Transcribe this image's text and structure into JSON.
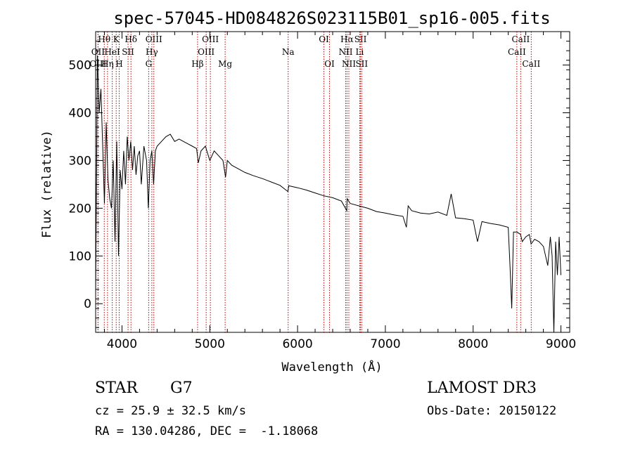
{
  "chart_data": {
    "type": "line",
    "title": "spec-57045-HD084826S023115B01_sp16-005.fits",
    "xlabel": "Wavelength (Å)",
    "ylabel": "Flux (relative)",
    "xlim": [
      3700,
      9100
    ],
    "ylim": [
      -60,
      570
    ],
    "x_ticks": [
      4000,
      5000,
      6000,
      7000,
      8000,
      9000
    ],
    "y_ticks": [
      0,
      100,
      200,
      300,
      400,
      500
    ],
    "grid": false,
    "series": [
      {
        "x": [
          3700,
          3720,
          3740,
          3760,
          3780,
          3800,
          3820,
          3840,
          3860,
          3880,
          3900,
          3920,
          3940,
          3960,
          3980,
          4000,
          4020,
          4040,
          4060,
          4080,
          4100,
          4120,
          4140,
          4160,
          4180,
          4200,
          4220,
          4250,
          4280,
          4300,
          4320,
          4340,
          4360,
          4380,
          4400,
          4450,
          4500,
          4550,
          4600,
          4650,
          4700,
          4750,
          4800,
          4850,
          4870,
          4900,
          4950,
          5000,
          5050,
          5100,
          5150,
          5180,
          5200,
          5250,
          5300,
          5400,
          5500,
          5600,
          5700,
          5800,
          5890,
          5900,
          6000,
          6100,
          6200,
          6300,
          6400,
          6500,
          6560,
          6565,
          6600,
          6700,
          6800,
          6900,
          7000,
          7100,
          7200,
          7240,
          7260,
          7300,
          7400,
          7500,
          7600,
          7700,
          7750,
          7800,
          7900,
          8000,
          8050,
          8100,
          8200,
          8300,
          8400,
          8420,
          8440,
          8460,
          8500,
          8540,
          8560,
          8600,
          8640,
          8660,
          8700,
          8750,
          8800,
          8850,
          8880,
          8900,
          8920,
          8940,
          8960,
          8980,
          9000
        ],
        "values": [
          20,
          520,
          400,
          450,
          330,
          210,
          380,
          260,
          220,
          200,
          300,
          130,
          340,
          100,
          280,
          240,
          320,
          250,
          350,
          300,
          340,
          280,
          330,
          270,
          310,
          320,
          250,
          330,
          300,
          200,
          300,
          320,
          250,
          320,
          330,
          340,
          350,
          355,
          340,
          345,
          340,
          335,
          330,
          325,
          295,
          320,
          330,
          300,
          320,
          310,
          300,
          265,
          300,
          290,
          285,
          275,
          268,
          262,
          255,
          248,
          235,
          247,
          243,
          238,
          232,
          226,
          222,
          215,
          195,
          220,
          210,
          205,
          200,
          193,
          190,
          186,
          183,
          160,
          205,
          195,
          190,
          188,
          192,
          185,
          230,
          180,
          178,
          175,
          130,
          172,
          168,
          165,
          160,
          80,
          -10,
          150,
          150,
          145,
          130,
          140,
          145,
          125,
          135,
          130,
          120,
          80,
          140,
          100,
          -60,
          130,
          60,
          140,
          60
        ]
      }
    ],
    "line_markers": [
      {
        "label": "Hθ",
        "wavelength": 3798,
        "row": 1
      },
      {
        "label": "OII",
        "wavelength": 3727,
        "row": 2
      },
      {
        "label": "OIII",
        "wavelength": 3727,
        "row": 3
      },
      {
        "label": "Hη",
        "wavelength": 3835,
        "row": 3
      },
      {
        "label": "K",
        "wavelength": 3934,
        "row": 1
      },
      {
        "label": "HeI",
        "wavelength": 3889,
        "row": 2
      },
      {
        "label": "SII",
        "wavelength": 4069,
        "row": 2
      },
      {
        "label": "H",
        "wavelength": 3968,
        "row": 3
      },
      {
        "label": "Hδ",
        "wavelength": 4102,
        "row": 1
      },
      {
        "label": "OIII",
        "wavelength": 4363,
        "row": 1
      },
      {
        "label": "Hγ",
        "wavelength": 4340,
        "row": 2
      },
      {
        "label": "G",
        "wavelength": 4304,
        "row": 3
      },
      {
        "label": "OIII",
        "wavelength": 5007,
        "row": 1
      },
      {
        "label": "OIII",
        "wavelength": 4959,
        "row": 2
      },
      {
        "label": "Hβ",
        "wavelength": 4861,
        "row": 3
      },
      {
        "label": "Mg",
        "wavelength": 5175,
        "row": 3
      },
      {
        "label": "Na",
        "wavelength": 5893,
        "row": 2
      },
      {
        "label": "OI",
        "wavelength": 6300,
        "row": 1
      },
      {
        "label": "OI",
        "wavelength": 6364,
        "row": 3
      },
      {
        "label": "Hα",
        "wavelength": 6563,
        "row": 1
      },
      {
        "label": "SII",
        "wavelength": 6717,
        "row": 1
      },
      {
        "label": "NII",
        "wavelength": 6548,
        "row": 2
      },
      {
        "label": "Li",
        "wavelength": 6708,
        "row": 2
      },
      {
        "label": "NII",
        "wavelength": 6584,
        "row": 3
      },
      {
        "label": "SII",
        "wavelength": 6731,
        "row": 3
      },
      {
        "label": "CaII",
        "wavelength": 8542,
        "row": 1
      },
      {
        "label": "CaII",
        "wavelength": 8498,
        "row": 2
      },
      {
        "label": "CaII",
        "wavelength": 8662,
        "row": 3
      }
    ]
  },
  "info": {
    "object_class": "STAR",
    "subclass": "G7",
    "survey": "LAMOST DR3",
    "cz": "cz = 25.9 ± 32.5 km/s",
    "obs_date": "Obs-Date: 20150122",
    "coords": "RA = 130.04286, DEC =  -1.18068"
  }
}
